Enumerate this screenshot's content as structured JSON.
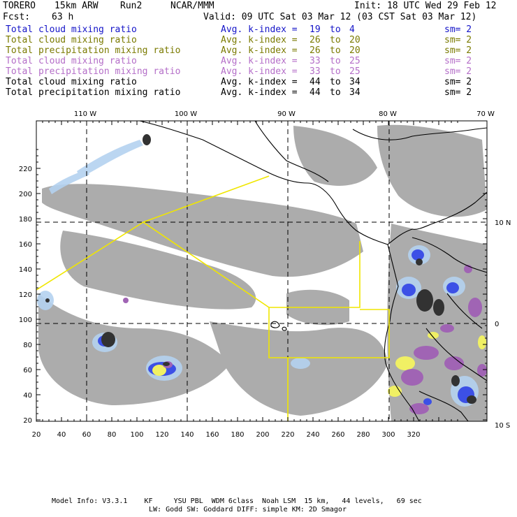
{
  "header": {
    "model": "TORERO",
    "resolution": "15km ARW",
    "run": "Run2",
    "org": "NCAR/MMM",
    "init": "Init: 18 UTC Wed 29 Feb 12",
    "fcst_label": "Fcst:",
    "fcst_value": "63 h",
    "valid": "Valid: 09 UTC Sat 03 Mar 12 (03 CST Sat 03 Mar 12)"
  },
  "legend": [
    {
      "name": "Total cloud mixing ratio",
      "kindex_label": "Avg. k-index =",
      "k_from": "19",
      "to": "to",
      "k_to": "4",
      "sm": "sm= 2",
      "color": "#1414c8"
    },
    {
      "name": "Total cloud mixing ratio",
      "kindex_label": "Avg. k-index =",
      "k_from": "26",
      "to": "to",
      "k_to": "20",
      "sm": "sm= 2",
      "color": "#7a7a00"
    },
    {
      "name": "Total precipitation mixing ratio",
      "kindex_label": "Avg. k-index =",
      "k_from": "26",
      "to": "to",
      "k_to": "20",
      "sm": "sm= 2",
      "color": "#7a7a00"
    },
    {
      "name": "Total cloud mixing ratio",
      "kindex_label": "Avg. k-index =",
      "k_from": "33",
      "to": "to",
      "k_to": "25",
      "sm": "sm= 2",
      "color": "#b46ec8"
    },
    {
      "name": "Total precipitation mixing ratio",
      "kindex_label": "Avg. k-index =",
      "k_from": "33",
      "to": "to",
      "k_to": "25",
      "sm": "sm= 2",
      "color": "#b46ec8"
    },
    {
      "name": "Total cloud mixing ratio",
      "kindex_label": "Avg. k-index =",
      "k_from": "44",
      "to": "to",
      "k_to": "34",
      "sm": "sm= 2",
      "color": "#000000"
    },
    {
      "name": "Total precipitation mixing ratio",
      "kindex_label": "Avg. k-index =",
      "k_from": "44",
      "to": "to",
      "k_to": "34",
      "sm": "sm= 2",
      "color": "#000000"
    }
  ],
  "map": {
    "x_ticks": [
      "20",
      "40",
      "60",
      "80",
      "100",
      "120",
      "140",
      "160",
      "180",
      "200",
      "220",
      "240",
      "260",
      "280",
      "300",
      "320"
    ],
    "y_ticks": [
      "20",
      "40",
      "60",
      "80",
      "100",
      "120",
      "140",
      "160",
      "180",
      "200",
      "220"
    ],
    "lon_labels": [
      "110 W",
      "100 W",
      "90 W",
      "80 W",
      "70 W"
    ],
    "lat_labels": [
      "10 N",
      "0",
      "10 S"
    ],
    "colors": {
      "cloud_gray": "#a8a8a8",
      "blue_light": "#b4d2f0",
      "blue": "#3c50e6",
      "purple": "#a064b4",
      "yellow_fill": "#f0f064",
      "dark": "#323232",
      "domain_line": "#f0e600"
    }
  },
  "footer": {
    "line1": "Model Info: V3.3.1    KF     YSU PBL  WDM 6class  Noah LSM  15 km,   44 levels,   69 sec",
    "line2": "LW: Godd SW: Goddard DIFF: simple KM: 2D Smagor"
  }
}
